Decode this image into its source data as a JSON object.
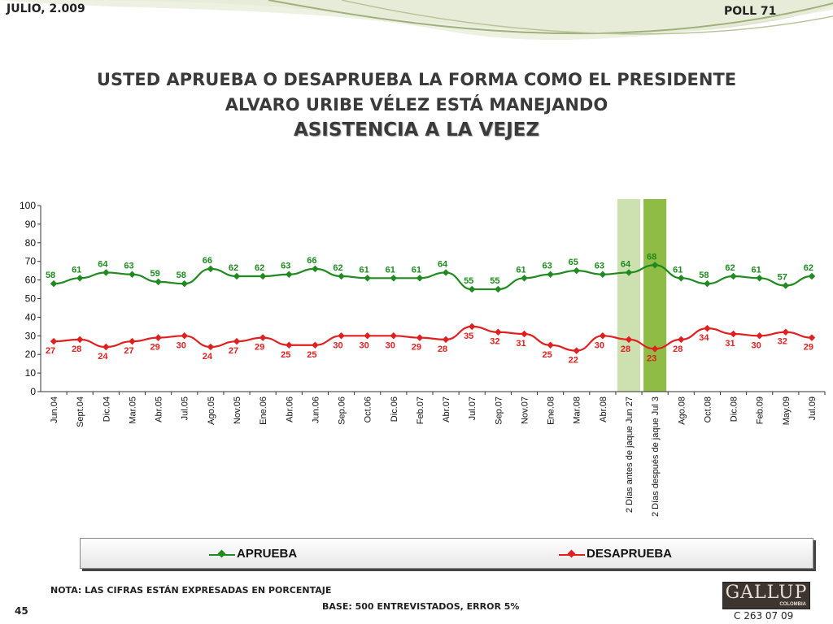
{
  "header": {
    "date": "JULIO, 2.009",
    "poll": "POLL 71"
  },
  "title": {
    "line1": "USTED APRUEBA O DESAPRUEBA LA FORMA COMO EL PRESIDENTE",
    "line2": "ALVARO URIBE VÉLEZ ESTÁ MANEJANDO",
    "line3": "ASISTENCIA A LA VEJEZ"
  },
  "legend": {
    "aprueba": "APRUEBA",
    "desaprueba": "DESAPRUEBA"
  },
  "footer": {
    "page_number": "45",
    "nota": "NOTA: LAS CIFRAS ESTÁN EXPRESADAS EN PORCENTAJE",
    "base": "BASE: 500 ENTREVISTADOS, ERROR 5%",
    "code": "C 263 07 09",
    "logo": "GALLUP",
    "logo_sub": "COLOMBIA"
  },
  "colors": {
    "aprueba": "#1f8a1f",
    "desaprueba": "#e02020",
    "highlight_light": "#cde0b0",
    "highlight_dark": "#8fbc45",
    "title": "#3a3a3a"
  },
  "chart_data": {
    "type": "line",
    "categories": [
      "Jun.04",
      "Sept.04",
      "Dic.04",
      "Mar.05",
      "Abr.05",
      "Jul.05",
      "Ago.05",
      "Nov.05",
      "Ene.06",
      "Abr.06",
      "Jun.06",
      "Sep.06",
      "Oct.06",
      "Dic.06",
      "Feb.07",
      "Abr.07",
      "Jul.07",
      "Sep.07",
      "Nov.07",
      "Ene.08",
      "Mar.08",
      "Abr.08",
      "2 Días antes de jaque Jun 27",
      "2 Días después de jaque Jul 3",
      "Ago.08",
      "Oct.08",
      "Dic.08",
      "Feb.09",
      "May.09",
      "Jul.09"
    ],
    "series": [
      {
        "name": "APRUEBA",
        "color": "#1f8a1f",
        "values": [
          58,
          61,
          64,
          63,
          59,
          58,
          66,
          62,
          62,
          63,
          66,
          62,
          61,
          61,
          61,
          64,
          55,
          55,
          61,
          63,
          65,
          63,
          64,
          68,
          61,
          58,
          62,
          61,
          57,
          62
        ]
      },
      {
        "name": "DESAPRUEBA",
        "color": "#e02020",
        "values": [
          27,
          28,
          24,
          27,
          29,
          30,
          24,
          27,
          29,
          25,
          25,
          30,
          30,
          30,
          29,
          28,
          35,
          32,
          31,
          25,
          22,
          30,
          28,
          23,
          28,
          34,
          31,
          30,
          32,
          29
        ]
      }
    ],
    "ylim": [
      0,
      100
    ],
    "yticks": [
      0,
      10,
      20,
      30,
      40,
      50,
      60,
      70,
      80,
      90,
      100
    ],
    "highlight_categories": [
      22,
      23
    ],
    "legend_position": "bottom",
    "grid": false
  }
}
